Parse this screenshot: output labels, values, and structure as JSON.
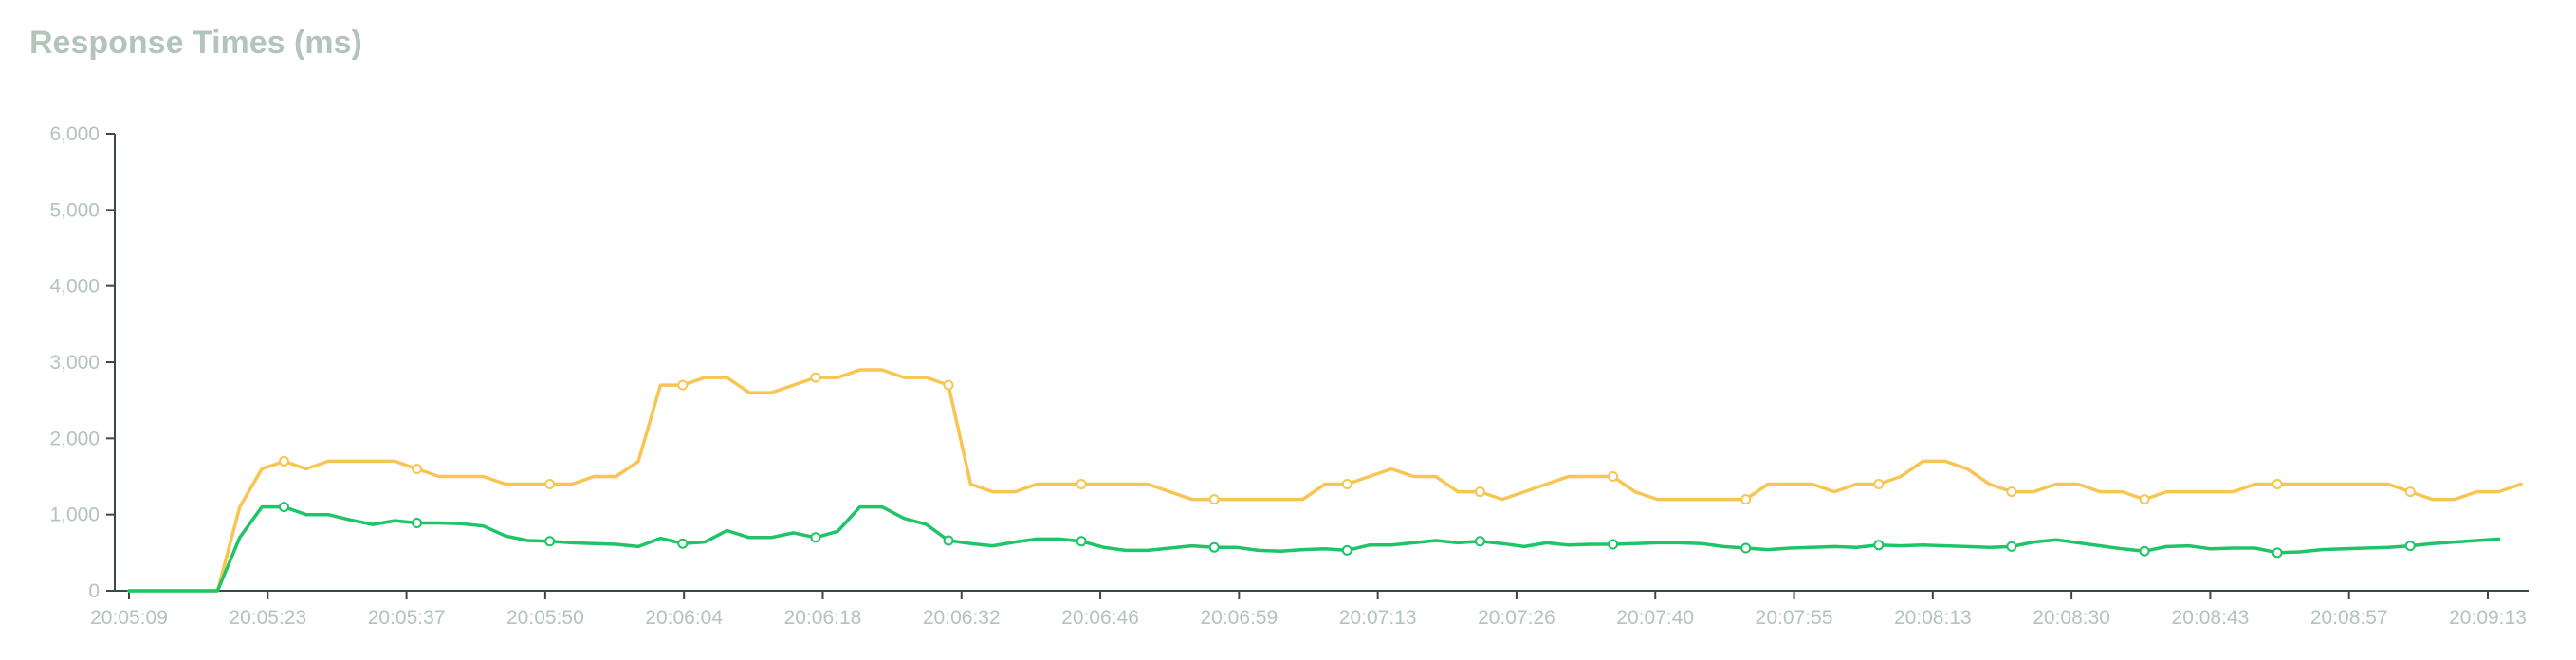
{
  "chart_data": {
    "type": "line",
    "title": "Response Times (ms)",
    "ylim": [
      0,
      6000
    ],
    "y_ticks": [
      {
        "value": 0,
        "label": "0"
      },
      {
        "value": 1000,
        "label": "1,000"
      },
      {
        "value": 2000,
        "label": "2,000"
      },
      {
        "value": 3000,
        "label": "3,000"
      },
      {
        "value": 4000,
        "label": "4,000"
      },
      {
        "value": 5000,
        "label": "5,000"
      },
      {
        "value": 6000,
        "label": "6,000"
      }
    ],
    "x_ticks": [
      "20:05:09",
      "20:05:23",
      "20:05:37",
      "20:05:50",
      "20:06:04",
      "20:06:18",
      "20:06:32",
      "20:06:46",
      "20:06:59",
      "20:07:13",
      "20:07:26",
      "20:07:40",
      "20:07:55",
      "20:08:13",
      "20:08:30",
      "20:08:43",
      "20:08:57",
      "20:09:13"
    ],
    "grid": false,
    "legend": "none",
    "series": [
      {
        "color": "#f9c552",
        "values": [
          0,
          0,
          0,
          0,
          0,
          1100,
          1600,
          1700,
          1600,
          1700,
          1700,
          1700,
          1700,
          1600,
          1500,
          1500,
          1500,
          1400,
          1400,
          1400,
          1400,
          1500,
          1500,
          1700,
          2700,
          2700,
          2800,
          2800,
          2600,
          2600,
          2700,
          2800,
          2800,
          2900,
          2900,
          2800,
          2800,
          2700,
          1400,
          1300,
          1300,
          1400,
          1400,
          1400,
          1400,
          1400,
          1400,
          1300,
          1200,
          1200,
          1200,
          1200,
          1200,
          1200,
          1400,
          1400,
          1500,
          1600,
          1500,
          1500,
          1300,
          1300,
          1200,
          1300,
          1400,
          1500,
          1500,
          1500,
          1300,
          1200,
          1200,
          1200,
          1200,
          1200,
          1400,
          1400,
          1400,
          1300,
          1400,
          1400,
          1500,
          1700,
          1700,
          1600,
          1400,
          1300,
          1300,
          1400,
          1400,
          1300,
          1300,
          1200,
          1300,
          1300,
          1300,
          1300,
          1400,
          1400,
          1400,
          1400,
          1400,
          1400,
          1400,
          1300,
          1200,
          1200,
          1300,
          1300,
          1400
        ]
      },
      {
        "color": "#1ec467",
        "values": [
          0,
          0,
          0,
          0,
          0,
          700,
          1100,
          1100,
          1000,
          1000,
          930,
          870,
          920,
          890,
          890,
          880,
          850,
          720,
          660,
          650,
          630,
          620,
          610,
          580,
          690,
          620,
          640,
          790,
          700,
          700,
          760,
          700,
          780,
          1100,
          1100,
          950,
          870,
          660,
          620,
          590,
          640,
          680,
          680,
          650,
          570,
          530,
          530,
          560,
          590,
          570,
          570,
          530,
          520,
          540,
          550,
          530,
          600,
          600,
          630,
          660,
          630,
          650,
          620,
          580,
          630,
          600,
          610,
          610,
          620,
          630,
          630,
          620,
          580,
          560,
          540,
          560,
          570,
          580,
          570,
          600,
          590,
          600,
          590,
          580,
          570,
          580,
          640,
          670,
          630,
          590,
          550,
          520,
          580,
          590,
          550,
          560,
          560,
          500,
          510,
          540,
          550,
          560,
          570,
          590,
          620,
          640,
          660,
          680
        ]
      }
    ]
  }
}
